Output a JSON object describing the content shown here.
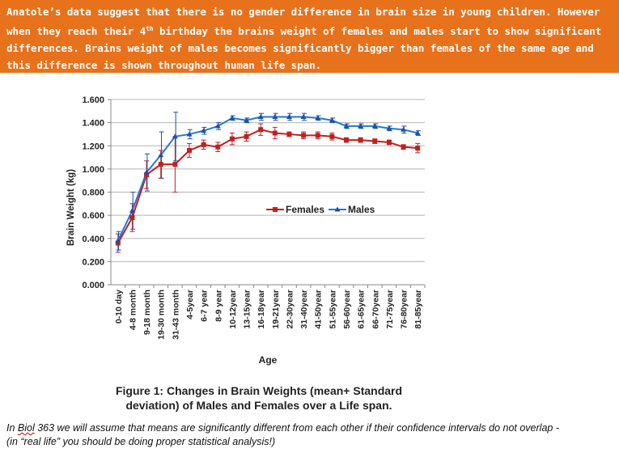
{
  "banner": {
    "part1": "Anatole’s data suggest that there is no gender difference in brain size in young children. However when they reach their 4",
    "sup": "th",
    "part2": " birthday the brains weight of females and males start to show significant differences. Brains weight of males becomes significantly bigger than females of the same age and this difference is shown throughout human life span."
  },
  "caption": {
    "line1": "Figure 1: Changes in Brain Weights (mean+ Standard",
    "line2": "deviation) of Males and Females over a Life span."
  },
  "footnote": {
    "pre": "In ",
    "course": "Biol",
    "line1_rest": " 363 we will assume that means are significantly different from each other if their confidence intervals do not overlap -",
    "line2": "(in “real life” you should be doing proper statistical analysis!)"
  },
  "colors": {
    "banner": "#E8711B",
    "females": "#C0201E",
    "males": "#1F7BD6"
  },
  "chart_data": {
    "type": "line",
    "xlabel": "Age",
    "ylabel": "Brain Weight (kg)",
    "ylim": [
      0,
      1.6
    ],
    "yticks": [
      "0.000",
      "0.200",
      "0.400",
      "0.600",
      "0.800",
      "1.000",
      "1.200",
      "1.400",
      "1.600"
    ],
    "grid": "horizontal",
    "legend_position": "middle-right",
    "categories": [
      "0-10 day",
      "4-8 month",
      "9-18 month",
      "19-30 month",
      "31-43 month",
      "4-5year",
      "6-7 year",
      "8-9 year",
      "10-12year",
      "13-15year",
      "16-18year",
      "19-21year",
      "22-30year",
      "31-40year",
      "41-50year",
      "51-55year",
      "56-60year",
      "61-65year",
      "66-70year",
      "71-75year",
      "76-80year",
      "81-85year"
    ],
    "series": [
      {
        "name": "Females",
        "marker": "square",
        "values": [
          0.36,
          0.58,
          0.95,
          1.04,
          1.04,
          1.16,
          1.21,
          1.19,
          1.26,
          1.28,
          1.34,
          1.31,
          1.3,
          1.29,
          1.29,
          1.28,
          1.25,
          1.25,
          1.24,
          1.23,
          1.19,
          1.18
        ],
        "error": [
          0.08,
          0.12,
          0.12,
          0.12,
          0.24,
          0.06,
          0.04,
          0.04,
          0.05,
          0.04,
          0.05,
          0.05,
          0.02,
          0.03,
          0.03,
          0.03,
          0.02,
          0.02,
          0.02,
          0.02,
          0.02,
          0.04
        ]
      },
      {
        "name": "Males",
        "marker": "triangle",
        "values": [
          0.38,
          0.64,
          0.97,
          1.12,
          1.28,
          1.3,
          1.33,
          1.37,
          1.44,
          1.42,
          1.45,
          1.45,
          1.45,
          1.45,
          1.44,
          1.42,
          1.37,
          1.37,
          1.37,
          1.35,
          1.34,
          1.31
        ],
        "error": [
          0.08,
          0.16,
          0.16,
          0.2,
          0.21,
          0.04,
          0.03,
          0.03,
          0.02,
          0.02,
          0.03,
          0.03,
          0.03,
          0.03,
          0.02,
          0.02,
          0.02,
          0.02,
          0.02,
          0.02,
          0.03,
          0.02
        ]
      }
    ]
  }
}
